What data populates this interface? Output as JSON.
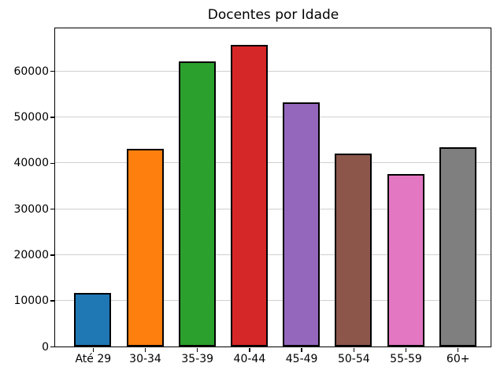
{
  "figure": {
    "background": "#ffffff"
  },
  "chart_data": {
    "type": "bar",
    "title": "Docentes por Idade",
    "xlabel": "",
    "ylabel": "",
    "categories": [
      "Até 29",
      "30-34",
      "35-39",
      "40-44",
      "45-49",
      "50-54",
      "55-59",
      "60+"
    ],
    "values": [
      11700,
      43000,
      62100,
      65700,
      53100,
      42100,
      37600,
      43400
    ],
    "colors": [
      "#1f77b4",
      "#ff7f0e",
      "#2ca02c",
      "#d62728",
      "#9467bd",
      "#8c564b",
      "#e377c2",
      "#7f7f7f"
    ],
    "edge_color": "#000000",
    "yticks": [
      0,
      10000,
      20000,
      30000,
      40000,
      50000,
      60000
    ],
    "ytick_labels": [
      "0",
      "10000",
      "20000",
      "30000",
      "40000",
      "50000",
      "60000"
    ],
    "ylim": [
      0,
      69300
    ],
    "grid": true,
    "grid_axis": "y",
    "grid_color": "#d0d0d0",
    "legend_position": "none"
  }
}
